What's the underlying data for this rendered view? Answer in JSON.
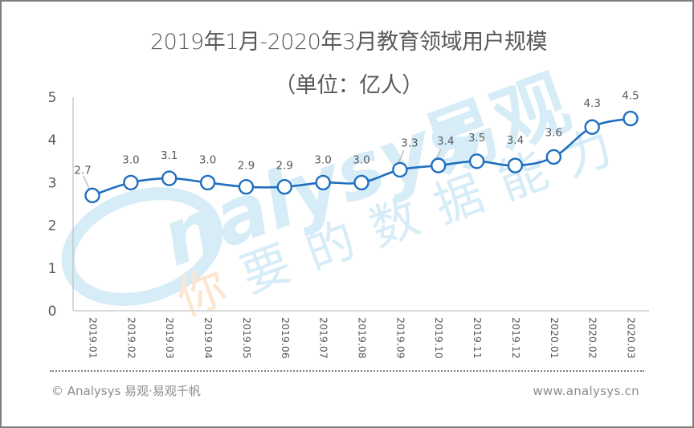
{
  "header": {
    "title": "2019年1月-2020年3月教育领域用户规模",
    "subtitle": "（单位：亿人）"
  },
  "colors": {
    "line": "#1f6fc0",
    "marker_fill": "#ffffff",
    "axis": "#bfbfbf",
    "text": "#595959",
    "leader": "#bfbfbf",
    "watermark_blue": "#d6ecf7",
    "watermark_orange": "#fde6cf"
  },
  "watermark": {
    "logo_text": "nalysys",
    "brand_cn": "易观",
    "slogan": "你要的数据能力"
  },
  "footer": {
    "copyright": "© Analysys 易观·易观千帆",
    "website": "www.analysys.cn"
  },
  "chart_data": {
    "type": "line",
    "title": "2019年1月-2020年3月教育领域用户规模",
    "subtitle": "（单位：亿人）",
    "xlabel": "",
    "ylabel": "亿人",
    "categories": [
      "2019.01",
      "2019.02",
      "2019.03",
      "2019.04",
      "2019.05",
      "2019.06",
      "2019.07",
      "2019.08",
      "2019.09",
      "2019.10",
      "2019.11",
      "2019.12",
      "2020.01",
      "2020.02",
      "2020.03"
    ],
    "series": [
      {
        "name": "教育领域用户规模",
        "values": [
          2.7,
          3.0,
          3.1,
          3.0,
          2.9,
          2.9,
          3.0,
          3.0,
          3.3,
          3.4,
          3.5,
          3.4,
          3.6,
          4.3,
          4.5
        ]
      }
    ],
    "data_labels": [
      "2.7",
      "3.0",
      "3.1",
      "3.0",
      "2.9",
      "2.9",
      "3.0",
      "3.0",
      "3.3",
      "3.4",
      "3.5",
      "3.4",
      "3.6",
      "4.3",
      "4.5"
    ],
    "yticks": [
      0,
      1,
      2,
      3,
      4,
      5
    ],
    "ylim": [
      0,
      5
    ],
    "grid": false,
    "legend": "none",
    "markers": "hollow circle",
    "smooth": true
  }
}
